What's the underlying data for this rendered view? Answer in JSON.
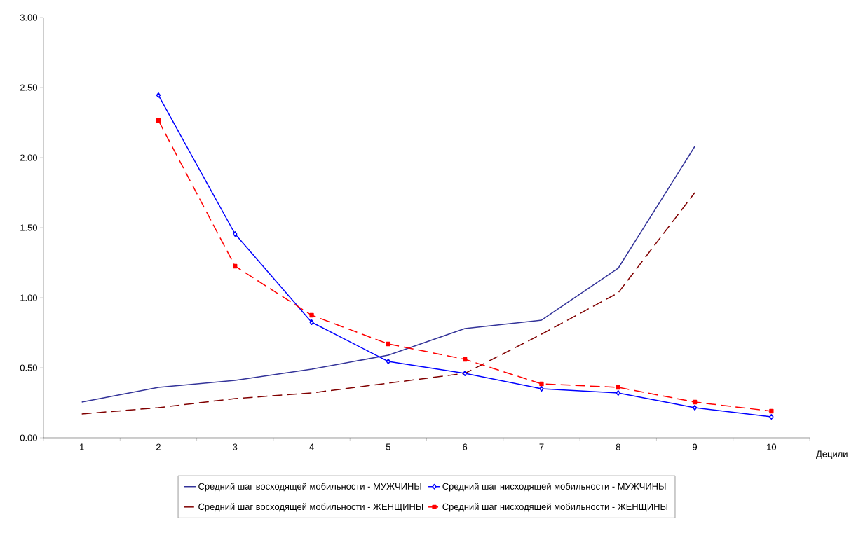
{
  "chart_data": {
    "type": "line",
    "xlabel": "Децили",
    "categories": [
      "1",
      "2",
      "3",
      "4",
      "5",
      "6",
      "7",
      "8",
      "9",
      "10"
    ],
    "ylim": [
      0,
      3
    ],
    "yticks": [
      {
        "value": 0,
        "label": "0.00"
      },
      {
        "value": 0.5,
        "label": "0.50"
      },
      {
        "value": 1,
        "label": "1.00"
      },
      {
        "value": 1.5,
        "label": "1.50"
      },
      {
        "value": 2,
        "label": "2.00"
      },
      {
        "value": 2.5,
        "label": "2.50"
      },
      {
        "value": 3,
        "label": "3.00"
      }
    ],
    "grid": false,
    "legend": "bottom",
    "series": [
      {
        "name": "Средний шаг восходящей мобильности - МУЖЧИНЫ",
        "color": "#333399",
        "marker": "none",
        "line_style": "solid",
        "values": [
          0.255,
          0.36,
          0.41,
          0.49,
          0.59,
          0.78,
          0.84,
          1.21,
          2.08,
          null
        ]
      },
      {
        "name": "Средний шаг нисходящей мобильности - МУЖЧИНЫ",
        "color": "#0000ff",
        "marker": "diamond",
        "line_style": "solid",
        "values": [
          null,
          2.445,
          1.455,
          0.825,
          0.545,
          0.46,
          0.35,
          0.32,
          0.215,
          0.15
        ]
      },
      {
        "name": "Средний шаг восходящей мобильности - ЖЕНЩИНЫ",
        "color": "#800000",
        "marker": "none",
        "line_style": "dashed",
        "values": [
          0.17,
          0.215,
          0.28,
          0.32,
          0.39,
          0.46,
          0.74,
          1.035,
          1.75,
          null
        ]
      },
      {
        "name": "Средний шаг нисходящей мобильности - ЖЕНЩИНЫ",
        "color": "#ff0000",
        "marker": "square",
        "line_style": "dashed",
        "values": [
          null,
          2.265,
          1.225,
          0.875,
          0.67,
          0.56,
          0.385,
          0.36,
          0.255,
          0.19
        ]
      }
    ]
  }
}
